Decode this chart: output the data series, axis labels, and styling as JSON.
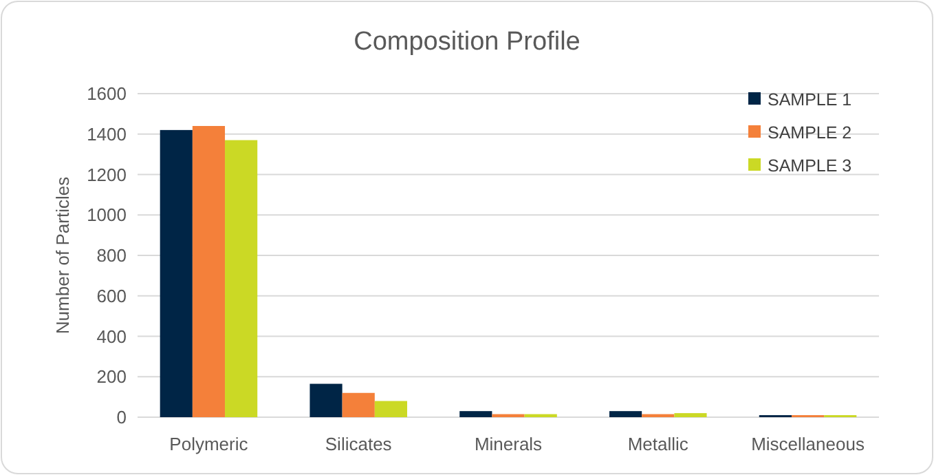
{
  "chart_data": {
    "type": "bar",
    "title": "Composition Profile",
    "ylabel": "Number of Particles",
    "categories": [
      "Polymeric",
      "Silicates",
      "Minerals",
      "Metallic",
      "Miscellaneous"
    ],
    "series": [
      {
        "name": "SAMPLE 1",
        "color": "#002546",
        "values": [
          1420,
          165,
          30,
          30,
          10
        ]
      },
      {
        "name": "SAMPLE 2",
        "color": "#f4803a",
        "values": [
          1440,
          120,
          15,
          15,
          10
        ]
      },
      {
        "name": "SAMPLE 3",
        "color": "#cbd925",
        "values": [
          1370,
          80,
          15,
          20,
          10
        ]
      }
    ],
    "ylim": [
      0,
      1600
    ],
    "yticks": [
      0,
      200,
      400,
      600,
      800,
      1000,
      1200,
      1400,
      1600
    ],
    "grid": "y",
    "legend": "top right"
  }
}
